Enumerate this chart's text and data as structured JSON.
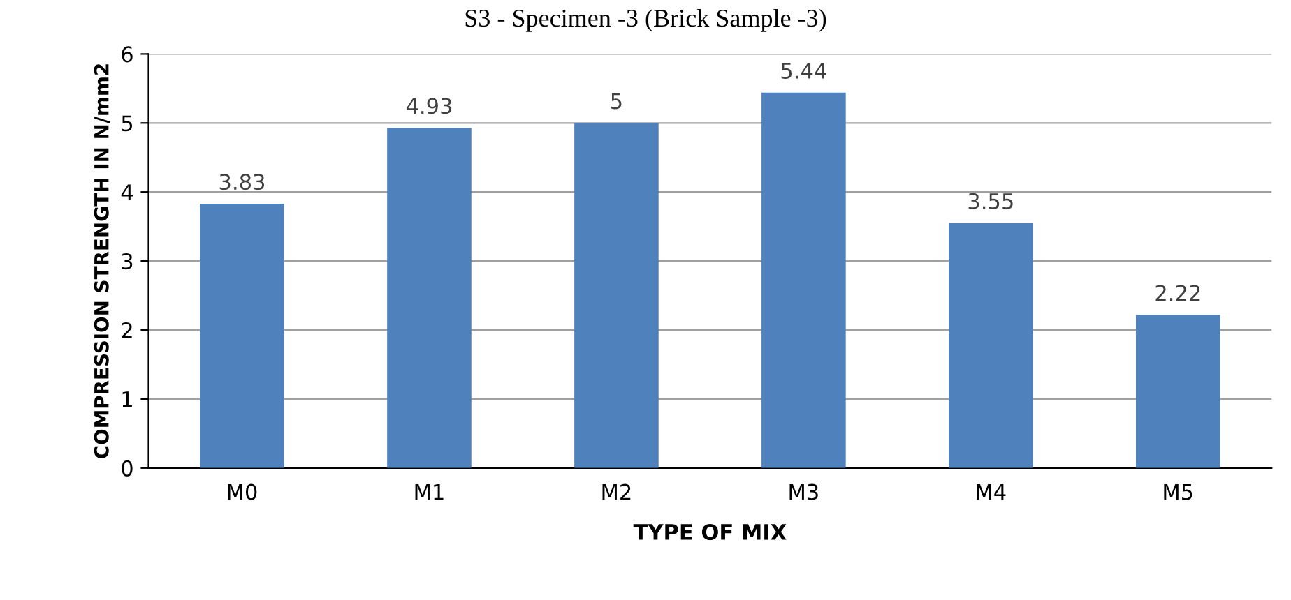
{
  "chart_data": {
    "type": "bar",
    "title": "S3 - Specimen -3 (Brick Sample -3)",
    "xlabel": "TYPE OF MIX",
    "ylabel": "COMPRESSION STRENGTH IN N/mm2",
    "categories": [
      "M0",
      "M1",
      "M2",
      "M3",
      "M4",
      "M5"
    ],
    "values": [
      3.83,
      4.93,
      5,
      5.44,
      3.55,
      2.22
    ],
    "value_labels": [
      "3.83",
      "4.93",
      "5",
      "5.44",
      "3.55",
      "2.22"
    ],
    "color": "#4f81bd",
    "ylim": [
      0,
      6
    ],
    "yticks": [
      0,
      1,
      2,
      3,
      4,
      5,
      6
    ],
    "grid": "y",
    "legend": false
  }
}
